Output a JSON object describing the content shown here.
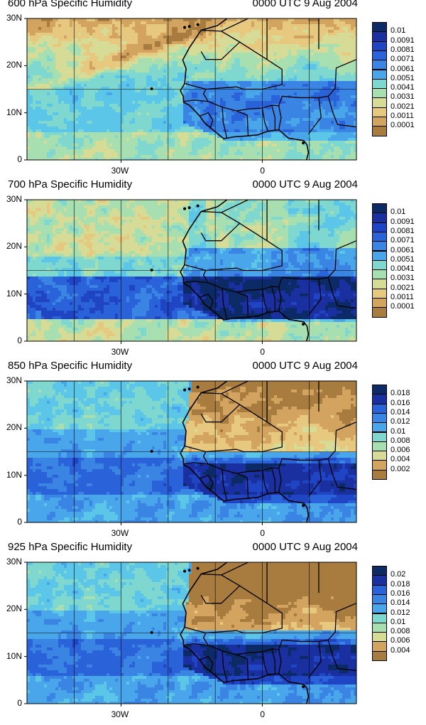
{
  "panels": [
    {
      "title": "600 hPa Specific Humidity",
      "time": "0000 UTC 9 Aug 2004",
      "legend_labels": [
        "0.01",
        "0.0091",
        "0.0081",
        "0.0071",
        "0.0061",
        "0.0051",
        "0.0041",
        "0.0031",
        "0.0021",
        "0.0011",
        "0.0001"
      ],
      "pattern": "mid-dry-north"
    },
    {
      "title": "700 hPa Specific Humidity",
      "time": "0000 UTC 9 Aug 2004",
      "legend_labels": [
        "0.01",
        "0.0091",
        "0.0081",
        "0.0071",
        "0.0061",
        "0.0051",
        "0.0041",
        "0.0031",
        "0.0021",
        "0.0011",
        "0.0001"
      ],
      "pattern": "moist-band"
    },
    {
      "title": "850 hPa Specific Humidity",
      "time": "0000 UTC 9 Aug 2004",
      "legend_labels": [
        "0.018",
        "0.016",
        "0.014",
        "0.012",
        "0.01",
        "0.008",
        "0.006",
        "0.004",
        "0.002"
      ],
      "pattern": "sahara-dry"
    },
    {
      "title": "925 hPa Specific Humidity",
      "time": "0000 UTC 9 Aug 2004",
      "legend_labels": [
        "0.02",
        "0.018",
        "0.016",
        "0.014",
        "0.012",
        "0.01",
        "0.008",
        "0.006",
        "0.004"
      ],
      "pattern": "sahara-very-dry"
    }
  ],
  "axes": {
    "y_ticks": [
      "30N",
      "20N",
      "10N",
      "0"
    ],
    "x_ticks": [
      "30W",
      "0"
    ]
  },
  "colors": {
    "scale": [
      "#0b2a66",
      "#1a2fa0",
      "#1f44c4",
      "#2a63d9",
      "#3a84e4",
      "#4aa6ea",
      "#5cc6e8",
      "#7fd8cf",
      "#a8dfb0",
      "#d6dc95",
      "#e6c97f",
      "#d2a460",
      "#a87b3f"
    ]
  }
}
